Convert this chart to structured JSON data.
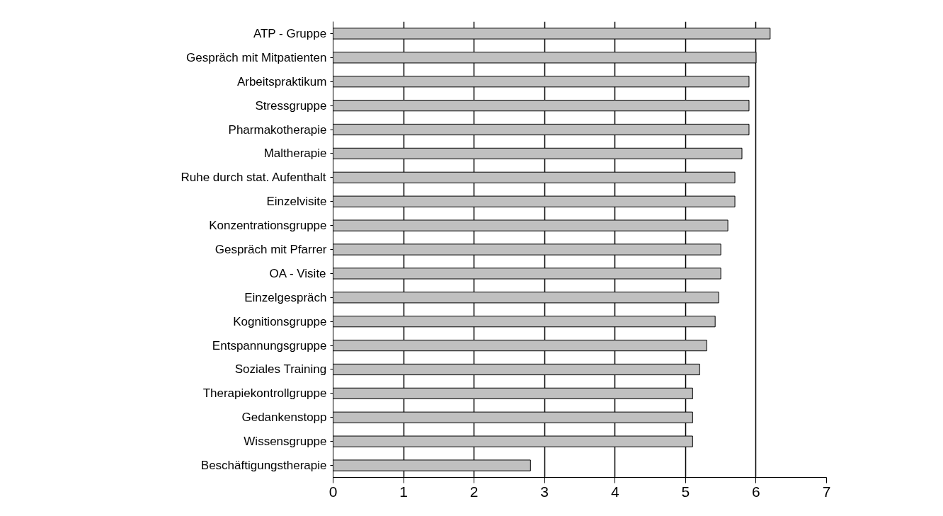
{
  "chart_data": {
    "type": "bar",
    "orientation": "horizontal",
    "categories": [
      "ATP - Gruppe",
      "Gespräch mit Mitpatienten",
      "Arbeitspraktikum",
      "Stressgruppe",
      "Pharmakotherapie",
      "Maltherapie",
      "Ruhe durch stat. Aufenthalt",
      "Einzelvisite",
      "Konzentrationsgruppe",
      "Gespräch mit Pfarrer",
      "OA - Visite",
      "Einzelgespräch",
      "Kognitionsgruppe",
      "Entspannungsgruppe",
      "Soziales Training",
      "Therapiekontrollgruppe",
      "Gedankenstopp",
      "Wissensgruppe",
      "Beschäftigungstherapie"
    ],
    "values": [
      6.2,
      6.0,
      5.9,
      5.9,
      5.9,
      5.8,
      5.7,
      5.7,
      5.6,
      5.5,
      5.5,
      5.47,
      5.42,
      5.3,
      5.2,
      5.1,
      5.1,
      5.1,
      2.8
    ],
    "color": "#c0c0c0",
    "xlim": [
      0,
      7
    ],
    "xticks": [
      0,
      1,
      2,
      3,
      4,
      5,
      6,
      7
    ],
    "grid": "x"
  }
}
